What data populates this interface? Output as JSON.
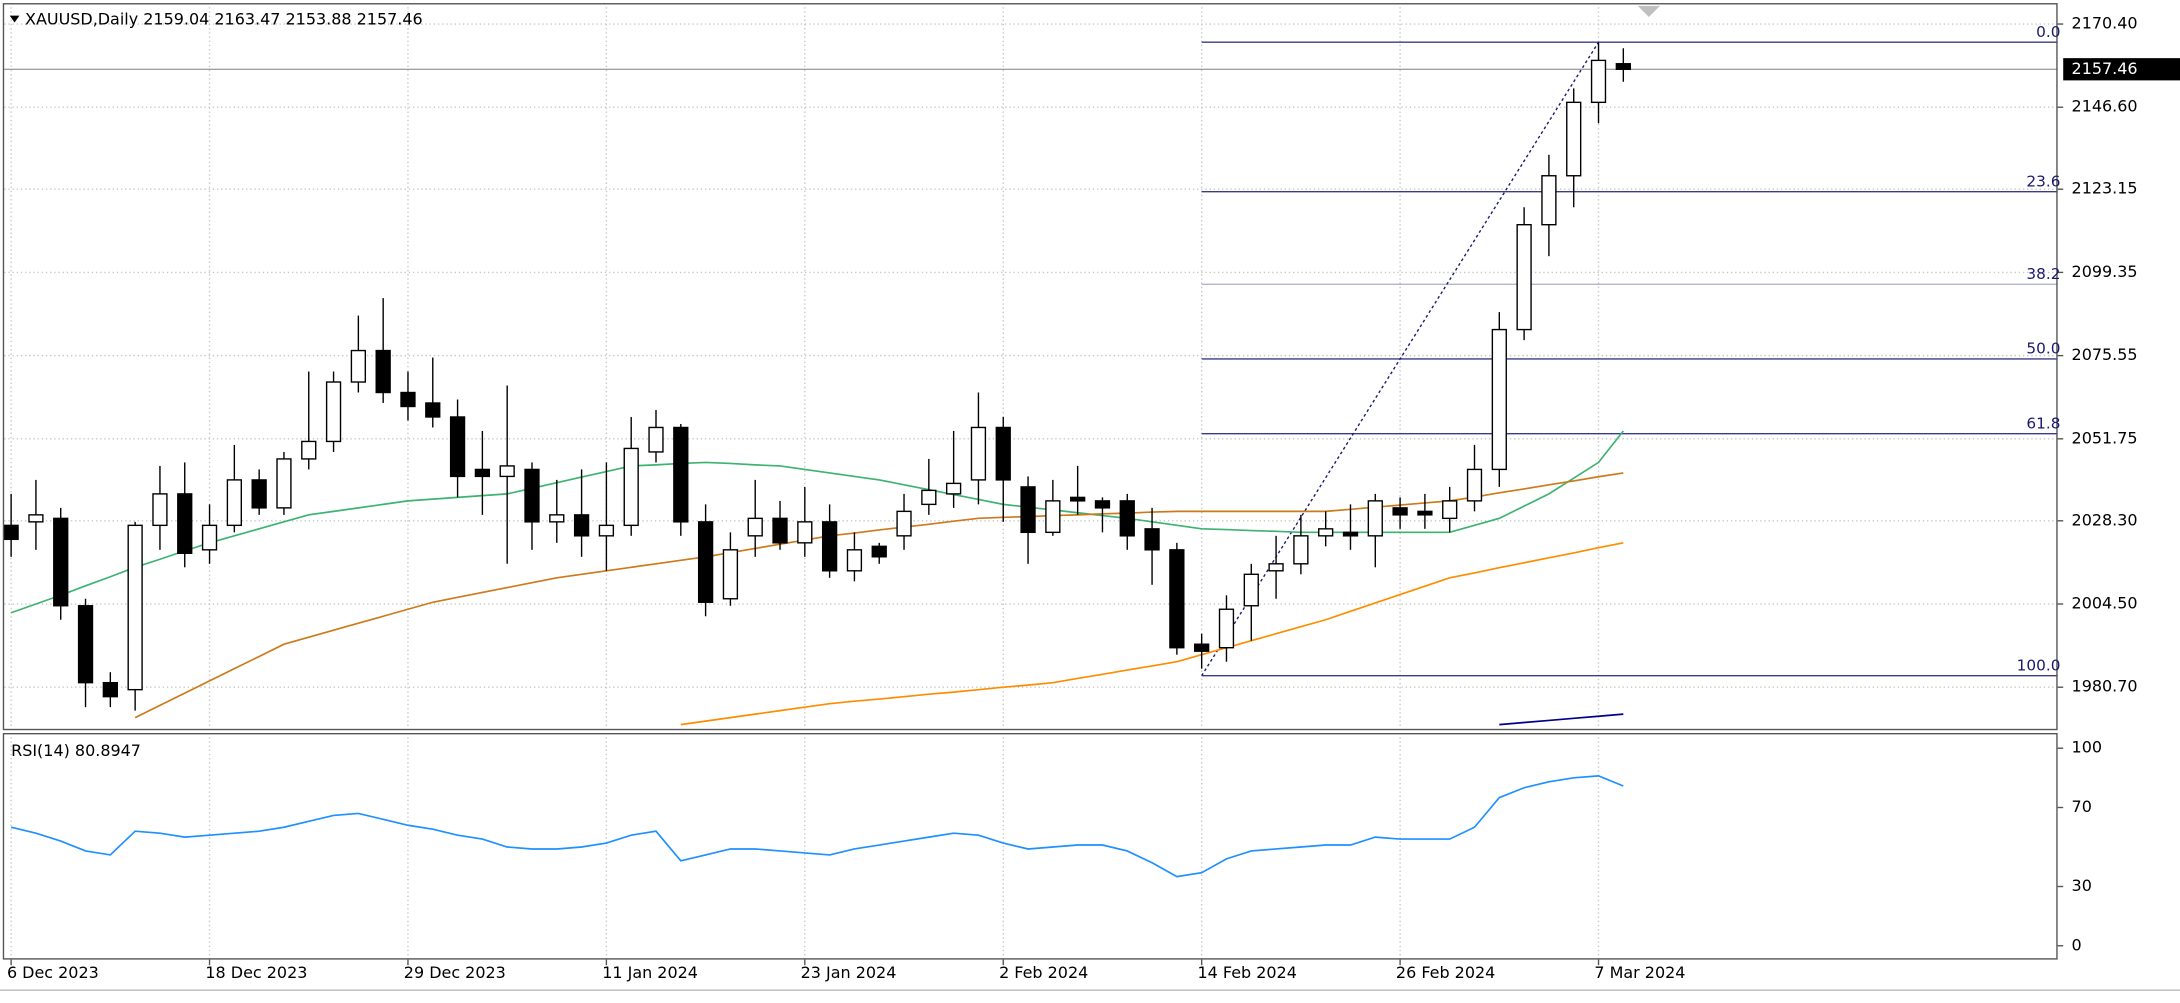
{
  "chart_data": [
    {
      "type": "candlestick",
      "symbol": "XAUUSD,Daily",
      "categories": [
        "6 Dec 2023",
        null,
        null,
        null,
        null,
        null,
        null,
        null,
        "18 Dec 2023",
        null,
        null,
        null,
        null,
        null,
        null,
        null,
        "29 Dec 2023",
        null,
        null,
        null,
        null,
        null,
        null,
        null,
        "11 Jan 2024",
        null,
        null,
        null,
        null,
        null,
        null,
        null,
        "23 Jan 2024",
        null,
        null,
        null,
        null,
        null,
        null,
        null,
        "2 Feb 2024",
        null,
        null,
        null,
        null,
        null,
        null,
        null,
        "14 Feb 2024",
        null,
        null,
        null,
        null,
        null,
        null,
        null,
        "26 Feb 2024",
        null,
        null,
        null,
        null,
        null,
        null,
        null,
        "7 Mar 2024",
        null
      ],
      "open": [
        2027,
        2028,
        2029,
        2004,
        1982,
        1980,
        2027,
        2036,
        2020,
        2027,
        2040,
        2032,
        2046,
        2051,
        2068,
        2077,
        2065,
        2062,
        2058,
        2043,
        2041,
        2043,
        2028,
        2030,
        2024,
        2027,
        2048,
        2055,
        2028,
        2006,
        2024,
        2029,
        2022,
        2028,
        2014,
        2021,
        2024,
        2033,
        2036,
        2040,
        2055,
        2038,
        2025,
        2035,
        2034,
        2034,
        2026,
        2020,
        1993,
        1992,
        2004,
        2014,
        2016,
        2024,
        2025,
        2024,
        2032,
        2031,
        2029,
        2034,
        2043,
        2083,
        2113,
        2127,
        2148,
        2159.04
      ],
      "high": [
        2036,
        2040,
        2032,
        2006,
        1985,
        2028,
        2044,
        2045,
        2033,
        2050,
        2043,
        2048,
        2071,
        2071,
        2087,
        2092,
        2071,
        2075,
        2063,
        2054,
        2067,
        2045,
        2040,
        2043,
        2045,
        2058,
        2060,
        2056,
        2033,
        2025,
        2040,
        2034,
        2038,
        2033,
        2025,
        2022,
        2036,
        2046,
        2054,
        2065,
        2058,
        2041,
        2040,
        2044,
        2035,
        2036,
        2032,
        2022,
        1996,
        2007,
        2016,
        2024,
        2030,
        2031,
        2033,
        2036,
        2035,
        2036,
        2038,
        2050,
        2088,
        2118,
        2133,
        2152,
        2165,
        2163.47
      ],
      "low": [
        2018,
        2020,
        2000,
        1975,
        1975,
        1974,
        2020,
        2015,
        2016,
        2025,
        2030,
        2030,
        2043,
        2048,
        2065,
        2062,
        2057,
        2055,
        2035,
        2030,
        2016,
        2020,
        2022,
        2018,
        2014,
        2024,
        2045,
        2024,
        2001,
        2004,
        2018,
        2020,
        2018,
        2012,
        2011,
        2016,
        2020,
        2030,
        2032,
        2033,
        2028,
        2016,
        2024,
        2030,
        2025,
        2020,
        2010,
        1990,
        1986,
        1988,
        1994,
        2006,
        2013,
        2021,
        2020,
        2015,
        2026,
        2026,
        2025,
        2031,
        2038,
        2080,
        2104,
        2118,
        2142,
        2153.88
      ],
      "close": [
        2023,
        2030,
        2004,
        1982,
        1978,
        2027,
        2036,
        2019,
        2027,
        2040,
        2032,
        2046,
        2051,
        2068,
        2077,
        2065,
        2061,
        2058,
        2041,
        2041,
        2044,
        2028,
        2030,
        2024,
        2027,
        2049,
        2055,
        2028,
        2005,
        2020,
        2029,
        2022,
        2028,
        2014,
        2020,
        2018,
        2031,
        2037,
        2039,
        2055,
        2040,
        2025,
        2034,
        2034,
        2032,
        2024,
        2020,
        1992,
        1991,
        2003,
        2013,
        2016,
        2024,
        2026,
        2024,
        2034,
        2030,
        2030,
        2034,
        2043,
        2083,
        2113,
        2127,
        2148,
        2160,
        2157.46
      ],
      "up_color": "#ffffff",
      "down_color": "#000000",
      "outline_color": "#000000",
      "lines": [
        {
          "color": "#3cb371",
          "values": [
            2002,
            2004.5,
            2007,
            2009.7,
            2012.3,
            2015,
            2017.3,
            2019.7,
            2022,
            2024,
            2026,
            2028,
            2030,
            2031,
            2032,
            2033,
            2034,
            2034.5,
            2035,
            2035.5,
            2036,
            2037.6,
            2039.2,
            2040.8,
            2042.4,
            2044,
            2044.3,
            2044.7,
            2045,
            2044.7,
            2044.3,
            2044,
            2043,
            2042,
            2041,
            2040,
            2038.6,
            2037.2,
            2035.8,
            2034.4,
            2033,
            2032.2,
            2031.4,
            2030.6,
            2029.8,
            2029,
            2028,
            2027,
            2026,
            2025.8,
            2025.5,
            2025.3,
            2025,
            2025,
            2025,
            2025,
            2025,
            2025,
            2025,
            2027,
            2029,
            2032.5,
            2036,
            2040.5,
            2045,
            2054
          ]
        },
        {
          "color": "#cc7a1a",
          "values": [
            null,
            null,
            null,
            null,
            null,
            1972,
            1975.5,
            1979,
            1982.5,
            1986,
            1989.5,
            1993,
            1995,
            1997,
            1999,
            2001,
            2003,
            2005,
            2006.4,
            2007.8,
            2009.2,
            2010.6,
            2012,
            2013,
            2014,
            2015,
            2016,
            2017,
            2018,
            2019.2,
            2020.4,
            2021.6,
            2022.8,
            2024,
            2024.8,
            2025.7,
            2026.5,
            2027.3,
            2028.2,
            2029,
            2029.3,
            2029.5,
            2029.8,
            2030,
            2030.3,
            2030.5,
            2030.8,
            2031,
            2031,
            2031,
            2031,
            2031,
            2031,
            2031,
            2031.6,
            2032.2,
            2032.8,
            2033.4,
            2034,
            2035.1,
            2036.3,
            2037.4,
            2038.6,
            2039.7,
            2040.9,
            2042
          ]
        },
        {
          "color": "#ff8c00",
          "values": [
            null,
            null,
            null,
            null,
            null,
            null,
            null,
            null,
            null,
            null,
            null,
            null,
            null,
            null,
            null,
            null,
            null,
            null,
            null,
            null,
            null,
            null,
            null,
            null,
            null,
            null,
            null,
            1970,
            1971,
            1972,
            1973,
            1974,
            1975,
            1976,
            1976.7,
            1977.3,
            1978,
            1978.7,
            1979.3,
            1980,
            1980.7,
            1981.3,
            1982,
            1983.2,
            1984.4,
            1985.6,
            1986.8,
            1988,
            1990,
            1992,
            1994,
            1996,
            1998,
            2000,
            2002.4,
            2004.8,
            2007.2,
            2009.6,
            2012,
            2013.4,
            2014.9,
            2016.3,
            2017.7,
            2019.1,
            2020.6,
            2022
          ]
        },
        {
          "color": "#00008b",
          "values": [
            null,
            null,
            null,
            null,
            null,
            null,
            null,
            null,
            null,
            null,
            null,
            null,
            null,
            null,
            null,
            null,
            null,
            null,
            null,
            null,
            null,
            null,
            null,
            null,
            null,
            null,
            null,
            null,
            null,
            null,
            null,
            null,
            null,
            null,
            null,
            null,
            null,
            null,
            null,
            null,
            null,
            null,
            null,
            null,
            null,
            null,
            null,
            null,
            null,
            null,
            null,
            null,
            null,
            null,
            null,
            null,
            null,
            null,
            null,
            null,
            1970,
            1970.6,
            1971.2,
            1971.8,
            1972.4,
            1973
          ]
        }
      ],
      "fib": {
        "low": 1984,
        "high": 2165.2,
        "color": "#1a1a70",
        "levels": [
          {
            "value": 0,
            "label": "0.0"
          },
          23.6,
          38.2,
          {
            "value": 50,
            "label": "50.0"
          },
          61.8,
          {
            "value": 100,
            "label": "100.0"
          }
        ]
      },
      "ylim": [
        1968.8,
        2175.2
      ],
      "yticks": [
        {
          "value": 2170.4,
          "label": "2170.40"
        },
        {
          "value": 2146.6,
          "label": "2146.60"
        },
        2123.15,
        2099.35,
        2075.55,
        2051.75,
        {
          "value": 2028.3,
          "label": "2028.30"
        },
        {
          "value": 2004.5,
          "label": "2004.50"
        },
        {
          "value": 1980.7,
          "label": "1980.70"
        }
      ],
      "grid": true
    },
    {
      "type": "line",
      "title": "RSI(14)",
      "color": "#1e90ff",
      "values": [
        60,
        57,
        53,
        48,
        46,
        58,
        57,
        55,
        56,
        57,
        58,
        60,
        63,
        66,
        67,
        64,
        61,
        59,
        56,
        54,
        50,
        49,
        49,
        50,
        52,
        56,
        58,
        43,
        46,
        49,
        49,
        48,
        47,
        46,
        49,
        51,
        53,
        55,
        57,
        56,
        52,
        49,
        50,
        51,
        51,
        48,
        42,
        35,
        37,
        44,
        48,
        49,
        50,
        51,
        51,
        55,
        54,
        54,
        54,
        60,
        75,
        80,
        83,
        85,
        86,
        80.8947
      ],
      "ylim": [
        -7,
        105.6
      ],
      "yticks": [
        0,
        30,
        70,
        100
      ],
      "grid": false
    }
  ]
}
